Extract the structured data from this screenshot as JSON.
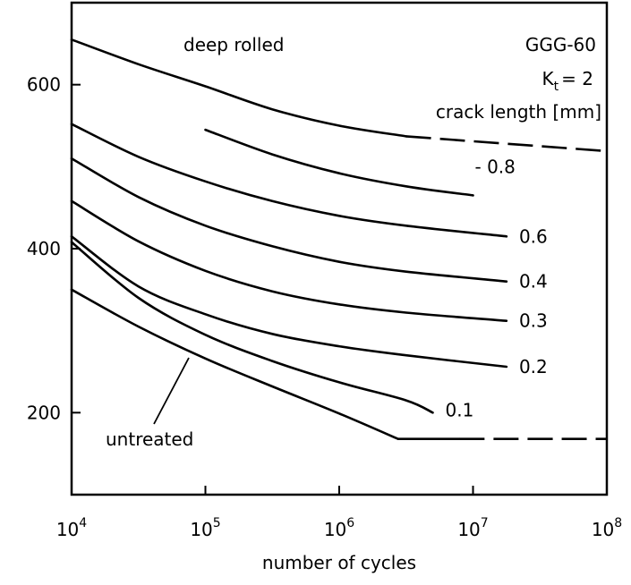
{
  "chart_data": {
    "type": "line",
    "xlabel": "number of cycles",
    "ylabel": "",
    "x_scale": "log",
    "xlim": [
      10000,
      100000000
    ],
    "ylim": [
      100,
      700
    ],
    "grid": false,
    "legend": "none",
    "x_ticks": [
      {
        "value": 10000,
        "base": "10",
        "exp": "4"
      },
      {
        "value": 100000,
        "base": "10",
        "exp": "5"
      },
      {
        "value": 1000000,
        "base": "10",
        "exp": "6"
      },
      {
        "value": 10000000,
        "base": "10",
        "exp": "7"
      },
      {
        "value": 100000000,
        "base": "10",
        "exp": "8"
      }
    ],
    "y_ticks": [
      {
        "value": 200,
        "label": "200"
      },
      {
        "value": 400,
        "label": "400"
      },
      {
        "value": 600,
        "label": "600"
      }
    ],
    "annotations": {
      "deep_rolled": "deep rolled",
      "material": "GGG-60",
      "kt_base": "K",
      "kt_sub": "t",
      "kt_value": "= 2",
      "crack_length": "crack length [mm]",
      "untreated": "untreated"
    },
    "series": [
      {
        "name": "deep rolled",
        "label": "",
        "points": [
          [
            10000,
            655
          ],
          [
            31600,
            625
          ],
          [
            100000,
            598
          ],
          [
            316000,
            570
          ],
          [
            1000000,
            550
          ],
          [
            3160000,
            537
          ]
        ],
        "dashed_points": [
          [
            3160000,
            537
          ],
          [
            100000000,
            519
          ]
        ]
      },
      {
        "name": "0.8",
        "label": "- 0.8",
        "points": [
          [
            100000,
            545
          ],
          [
            316000,
            515
          ],
          [
            1000000,
            492
          ],
          [
            3160000,
            476
          ],
          [
            10000000,
            465
          ]
        ],
        "dashed_points": []
      },
      {
        "name": "0.6",
        "label": "0.6",
        "points": [
          [
            10000,
            552
          ],
          [
            31600,
            512
          ],
          [
            100000,
            482
          ],
          [
            316000,
            458
          ],
          [
            1000000,
            440
          ],
          [
            3160000,
            428
          ],
          [
            17800000,
            415
          ]
        ],
        "dashed_points": []
      },
      {
        "name": "0.4",
        "label": "0.4",
        "points": [
          [
            10000,
            510
          ],
          [
            31600,
            463
          ],
          [
            100000,
            428
          ],
          [
            316000,
            403
          ],
          [
            1000000,
            384
          ],
          [
            3160000,
            372
          ],
          [
            17800000,
            360
          ]
        ],
        "dashed_points": []
      },
      {
        "name": "0.3",
        "label": "0.3",
        "points": [
          [
            10000,
            458
          ],
          [
            31600,
            409
          ],
          [
            100000,
            373
          ],
          [
            316000,
            348
          ],
          [
            1000000,
            332
          ],
          [
            3160000,
            322
          ],
          [
            17800000,
            312
          ]
        ],
        "dashed_points": []
      },
      {
        "name": "0.2",
        "label": "0.2",
        "points": [
          [
            10000,
            415
          ],
          [
            31600,
            354
          ],
          [
            100000,
            320
          ],
          [
            316000,
            296
          ],
          [
            1000000,
            281
          ],
          [
            3160000,
            270
          ],
          [
            17800000,
            256
          ]
        ],
        "dashed_points": []
      },
      {
        "name": "0.1",
        "label": "0.1",
        "points": [
          [
            10000,
            408
          ],
          [
            31600,
            340
          ],
          [
            100000,
            295
          ],
          [
            316000,
            263
          ],
          [
            1000000,
            237
          ],
          [
            3160000,
            215
          ],
          [
            5000000,
            200
          ]
        ],
        "dashed_points": []
      },
      {
        "name": "untreated",
        "label": "",
        "points": [
          [
            10000,
            350
          ],
          [
            31600,
            305
          ],
          [
            100000,
            266
          ],
          [
            316000,
            232
          ],
          [
            1000000,
            199
          ],
          [
            2750000,
            168
          ],
          [
            7940000,
            168
          ]
        ],
        "dashed_points": [
          [
            7940000,
            168
          ],
          [
            100000000,
            168
          ]
        ]
      }
    ]
  }
}
